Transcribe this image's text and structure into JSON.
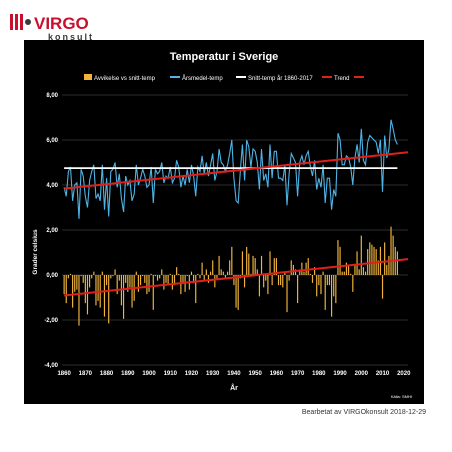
{
  "logo": {
    "name": "VIRGO",
    "sub": "konsult",
    "color_red": "#c8102e",
    "color_dark": "#3a3a3a"
  },
  "footer_note": "Bearbetat av VIRGOkonsult 2018-12-29",
  "colors": {
    "background": "#000000",
    "deviation": "#f0b43c",
    "annual_mean": "#4fb3e6",
    "mean_line": "#ffffff",
    "trend": "#e0201a",
    "text": "#ffffff",
    "grid": "#5a5a5a"
  },
  "chart_data": {
    "type": "bar+line",
    "title": "Temperatur i Sverige",
    "xlabel": "År",
    "ylabel": "Grader celsius",
    "source_note": "Källa: SMHI",
    "ylim": [
      -4,
      8
    ],
    "yticks": [
      "-4,00",
      "-2,00",
      "0,00",
      "2,00",
      "4,00",
      "6,00",
      "8,00"
    ],
    "ytick_values": [
      -4,
      -2,
      0,
      2,
      4,
      6,
      8
    ],
    "xlim": [
      1859,
      2022
    ],
    "xticks": [
      1860,
      1870,
      1880,
      1890,
      1900,
      1910,
      1920,
      1930,
      1940,
      1950,
      1960,
      1970,
      1980,
      1990,
      2000,
      2010,
      2020
    ],
    "grid": "horizontal",
    "legend_position": "top",
    "legend": [
      {
        "key": "deviation",
        "label": "Avvikelse vs snitt-temp"
      },
      {
        "key": "annual_mean",
        "label": "Årsmedel-temp"
      },
      {
        "key": "mean_line",
        "label": "Snitt-temp år 1860-2017"
      },
      {
        "key": "trend",
        "label": "Trend"
      }
    ],
    "mean_temperature_1860_2017": 4.75,
    "start_year": 1860,
    "annual_mean": [
      3.9,
      3.5,
      4.6,
      4.8,
      3.3,
      4.0,
      4.1,
      2.5,
      4.7,
      4.4,
      3.5,
      3.0,
      4.2,
      4.6,
      4.9,
      3.4,
      3.6,
      3.3,
      4.9,
      2.9,
      4.3,
      2.6,
      4.6,
      4.7,
      5.0,
      3.9,
      4.5,
      3.4,
      2.8,
      4.4,
      4.0,
      4.2,
      3.3,
      3.6,
      4.9,
      4.0,
      4.3,
      4.7,
      4.4,
      3.9,
      4.0,
      4.8,
      3.2,
      4.7,
      4.5,
      4.6,
      5.0,
      4.1,
      4.4,
      4.3,
      4.8,
      4.1,
      4.3,
      5.1,
      4.8,
      3.9,
      4.4,
      4.0,
      4.7,
      4.1,
      4.9,
      4.4,
      3.5,
      4.8,
      4.6,
      5.3,
      4.5,
      5.0,
      4.4,
      4.9,
      5.4,
      4.2,
      4.6,
      5.6,
      5.0,
      4.9,
      4.6,
      4.9,
      5.4,
      6.0,
      4.3,
      3.3,
      3.2,
      4.6,
      5.8,
      4.2,
      6.0,
      5.7,
      4.8,
      5.6,
      5.5,
      5.0,
      3.8,
      5.6,
      4.2,
      4.5,
      3.9,
      5.8,
      4.3,
      5.5,
      5.5,
      4.3,
      4.3,
      4.2,
      4.9,
      3.1,
      4.5,
      5.4,
      5.2,
      5.0,
      3.5,
      5.0,
      5.3,
      4.9,
      5.3,
      5.5,
      4.8,
      4.4,
      5.1,
      3.8,
      4.3,
      3.9,
      4.9,
      3.2,
      4.3,
      4.3,
      2.9,
      3.8,
      3.5,
      6.3,
      6.0,
      4.9,
      4.9,
      5.3,
      5.2,
      4.8,
      4.0,
      5.2,
      5.8,
      5.0,
      6.5,
      5.1,
      4.9,
      5.9,
      6.2,
      6.1,
      6.0,
      5.9,
      5.4,
      6.0,
      3.7,
      6.2,
      5.2,
      5.6,
      6.9,
      6.5,
      6.0,
      5.8
    ]
  }
}
